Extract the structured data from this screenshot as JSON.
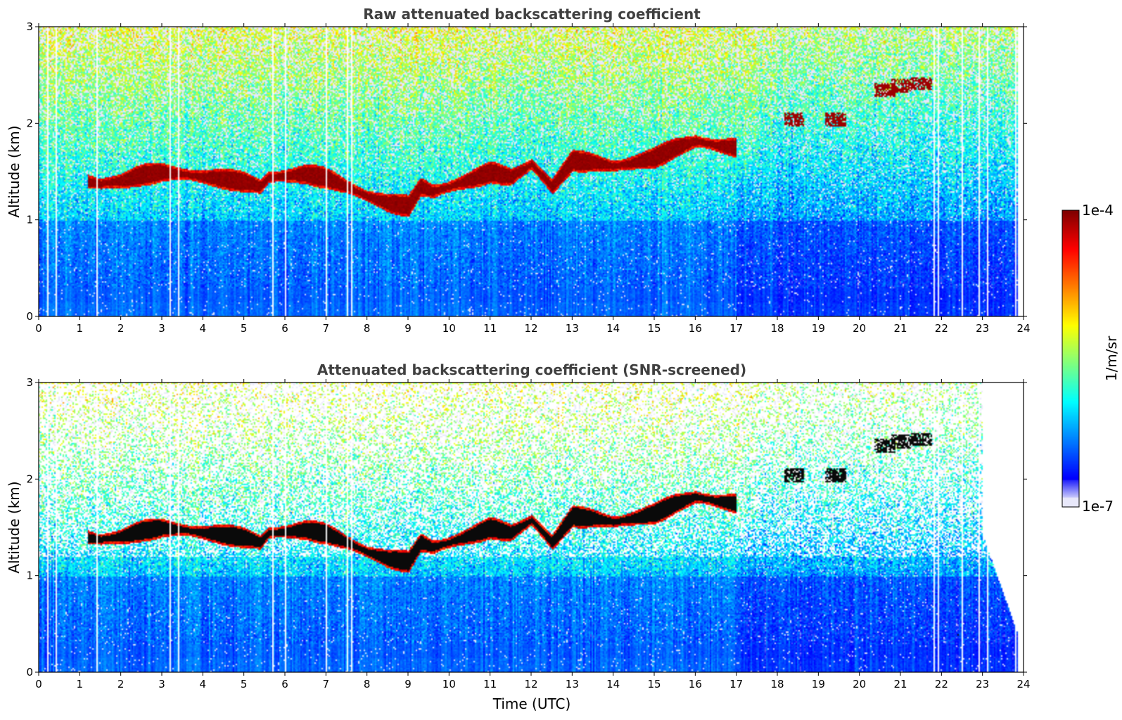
{
  "panels": [
    {
      "title": "Raw attenuated backscattering coefficient",
      "ylabel": "Altitude (km)",
      "xlabel": "",
      "screened": false
    },
    {
      "title": "Attenuated backscattering coefficient (SNR-screened)",
      "ylabel": "Altitude (km)",
      "xlabel": "Time (UTC)",
      "screened": true
    }
  ],
  "colorbar": {
    "label": "1/m/sr",
    "max_label": "1e-4",
    "min_label": "1e-7",
    "colormap": "jet",
    "scale": "log"
  },
  "chart_data": [
    {
      "type": "heatmap",
      "title": "Raw attenuated backscattering coefficient",
      "xlabel": "",
      "ylabel": "Altitude (km)",
      "xlim": [
        0,
        24
      ],
      "ylim": [
        0,
        3
      ],
      "x_ticks": [
        "0",
        "1",
        "2",
        "3",
        "4",
        "5",
        "6",
        "7",
        "8",
        "9",
        "10",
        "11",
        "12",
        "13",
        "14",
        "15",
        "16",
        "17",
        "18",
        "19",
        "20",
        "21",
        "22",
        "23",
        "24"
      ],
      "y_ticks": [
        "0",
        "1",
        "2",
        "3"
      ],
      "value_scale": "log",
      "value_range": [
        1e-07,
        0.0001
      ],
      "cloud_layer": {
        "time": [
          1.2,
          1.5,
          2.0,
          2.5,
          3.0,
          3.5,
          4.0,
          4.5,
          5.0,
          5.4,
          5.6,
          6.0,
          6.5,
          7.0,
          7.5,
          8.0,
          8.5,
          9.0,
          9.3,
          9.6,
          10.0,
          10.5,
          11.0,
          11.5,
          12.0,
          12.5,
          13.0,
          13.5,
          14.0,
          14.5,
          15.0,
          15.5,
          16.0,
          16.5,
          17.0
        ],
        "altitude_km": [
          1.4,
          1.38,
          1.41,
          1.47,
          1.5,
          1.48,
          1.45,
          1.43,
          1.4,
          1.35,
          1.45,
          1.46,
          1.48,
          1.44,
          1.35,
          1.25,
          1.18,
          1.15,
          1.35,
          1.3,
          1.35,
          1.42,
          1.5,
          1.45,
          1.58,
          1.35,
          1.62,
          1.6,
          1.56,
          1.6,
          1.65,
          1.75,
          1.82,
          1.78,
          1.75
        ]
      },
      "elevated_clouds": [
        {
          "time": 18.4,
          "altitude_km": 2.05
        },
        {
          "time": 19.4,
          "altitude_km": 2.05
        },
        {
          "time": 20.6,
          "altitude_km": 2.35
        },
        {
          "time": 21.0,
          "altitude_km": 2.4
        },
        {
          "time": 21.5,
          "altitude_km": 2.42
        }
      ],
      "missing_data_times": [
        0.2,
        0.4,
        0.6,
        1.4,
        1.8,
        3.2,
        3.4,
        5.7,
        5.85,
        6.0,
        6.5,
        6.6,
        7.0,
        7.05,
        7.5,
        7.6,
        21.8,
        21.9,
        22.5,
        22.9,
        23.1,
        23.3,
        23.5,
        23.8
      ]
    },
    {
      "type": "heatmap",
      "title": "Attenuated backscattering coefficient (SNR-screened)",
      "xlabel": "Time (UTC)",
      "ylabel": "Altitude (km)",
      "xlim": [
        0,
        24
      ],
      "ylim": [
        0,
        3
      ],
      "x_ticks": [
        "0",
        "1",
        "2",
        "3",
        "4",
        "5",
        "6",
        "7",
        "8",
        "9",
        "10",
        "11",
        "12",
        "13",
        "14",
        "15",
        "16",
        "17",
        "18",
        "19",
        "20",
        "21",
        "22",
        "23",
        "24"
      ],
      "y_ticks": [
        "0",
        "1",
        "2",
        "3"
      ],
      "value_scale": "log",
      "value_range": [
        1e-07,
        0.0001
      ],
      "cloud_layer_same_as_raw": true,
      "missing_data_times": [
        0.2,
        0.4,
        0.6,
        1.4,
        1.8,
        3.2,
        3.4,
        5.7,
        5.85,
        6.0,
        6.5,
        6.6,
        7.0,
        7.05,
        7.5,
        7.6,
        21.8,
        21.9,
        22.5,
        22.9,
        23.1,
        23.3,
        23.5,
        23.8
      ]
    }
  ]
}
